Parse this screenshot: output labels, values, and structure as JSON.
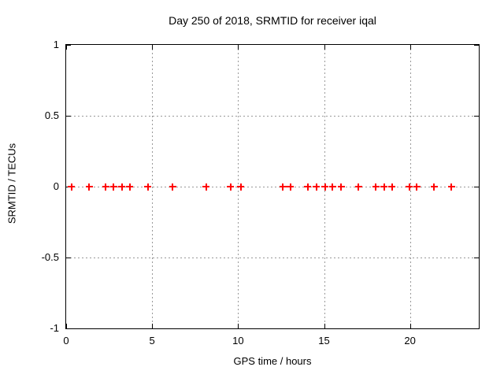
{
  "chart_data": {
    "type": "scatter",
    "title": "Day 250 of 2018, SRMTID for receiver iqal",
    "xlabel": "GPS time / hours",
    "ylabel": "SRMTID / TECUs",
    "xlim": [
      0,
      24
    ],
    "ylim": [
      -1,
      1
    ],
    "xticks": {
      "values": [
        0,
        5,
        10,
        15,
        20
      ],
      "labels": [
        "0",
        "5",
        "10",
        "15",
        "20"
      ]
    },
    "yticks": {
      "values": [
        1,
        0.5,
        0,
        -0.5,
        -1
      ],
      "labels": [
        "1",
        "0.5",
        "0",
        "-0.5",
        "-1"
      ]
    },
    "grid": true,
    "legend": false,
    "marker_style": "plus",
    "colors": {
      "marker": "#ff0000",
      "grid": "#999999",
      "border": "#000000",
      "background": "#ffffff"
    },
    "series": [
      {
        "name": "SRMTID",
        "x": [
          0.3,
          1.35,
          2.3,
          2.75,
          3.25,
          3.7,
          4.75,
          6.2,
          8.15,
          9.55,
          10.15,
          12.6,
          13.05,
          14.05,
          14.55,
          15.05,
          15.5,
          16.0,
          17.0,
          18.0,
          18.5,
          18.95,
          19.95,
          20.4,
          21.4,
          22.4
        ],
        "y": [
          0,
          0,
          0,
          0,
          0,
          0,
          0,
          0,
          0,
          0,
          0,
          0,
          0,
          0,
          0,
          0,
          0,
          0,
          0,
          0,
          0,
          0,
          0,
          0,
          0,
          0
        ]
      }
    ]
  }
}
